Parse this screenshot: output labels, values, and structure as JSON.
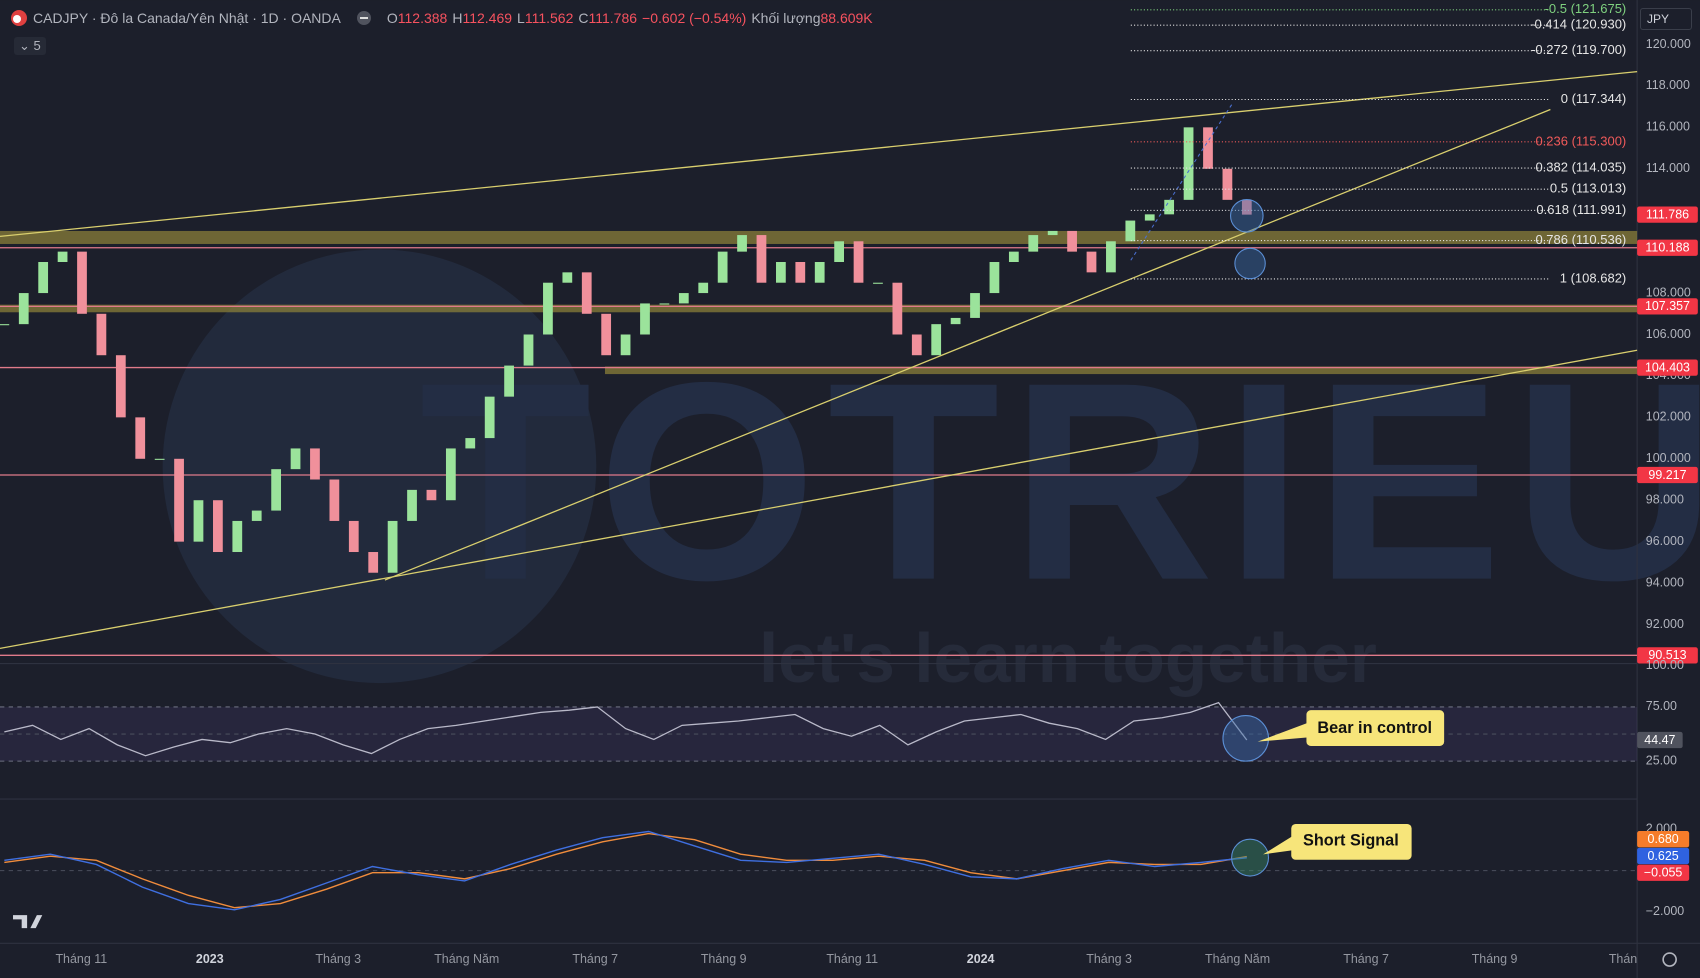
{
  "header": {
    "symbol": "CADJPY · Đô la Canada/Yên Nhật · 1D · OANDA",
    "ohlc": [
      {
        "key": "O",
        "value": 112.388
      },
      {
        "key": "H",
        "value": 112.469
      },
      {
        "key": "L",
        "value": 111.562
      },
      {
        "key": "C",
        "value": 111.786
      }
    ],
    "change": "−0.602 (−0.54%)",
    "volume_label": "Khối lượng",
    "volume": "88.609K",
    "indicators": 5,
    "currency": "JPY"
  },
  "price_axis": {
    "ticks": [
      {
        "value": 120,
        "label": "120.000"
      },
      {
        "value": 118,
        "label": "118.000"
      },
      {
        "value": 116,
        "label": "116.000"
      },
      {
        "value": 114,
        "label": "114.000"
      },
      {
        "value": 108,
        "label": "108.000"
      },
      {
        "value": 106,
        "label": "106.000"
      },
      {
        "value": 104,
        "label": "104.000"
      },
      {
        "value": 102,
        "label": "102.000"
      },
      {
        "value": 100,
        "label": "100.000"
      },
      {
        "value": 98,
        "label": "98.000"
      },
      {
        "value": 96,
        "label": "96.000"
      },
      {
        "value": 94,
        "label": "94.000"
      },
      {
        "value": 92,
        "label": "92.000"
      }
    ],
    "tags": [
      {
        "value": 111.786,
        "color": "#f23645"
      },
      {
        "value": 110.188,
        "color": "#f23645"
      },
      {
        "value": 107.357,
        "color": "#f23645"
      },
      {
        "value": 104.403,
        "color": "#f23645"
      },
      {
        "value": 99.217,
        "color": "#f23645"
      },
      {
        "value": 90.513,
        "color": "#f23645"
      }
    ]
  },
  "fib_levels": [
    {
      "value": 121.675,
      "label": "-0.5 (121.675)",
      "color": "#7fd17f"
    },
    {
      "value": 120.93,
      "label": "-0.414 (120.930)",
      "color": "#e6e6e6"
    },
    {
      "value": 119.7,
      "label": "-0.272 (119.700)",
      "color": "#e6e6e6"
    },
    {
      "value": 117.344,
      "label": "0 (117.344)",
      "color": "#e6e6e6"
    },
    {
      "value": 115.3,
      "label": "0.236 (115.300)",
      "color": "#f05a5a"
    },
    {
      "value": 114.035,
      "label": "0.382 (114.035)",
      "color": "#e6e6e6"
    },
    {
      "value": 113.013,
      "label": "0.5 (113.013)",
      "color": "#e6e6e6"
    },
    {
      "value": 111.991,
      "label": "0.618 (111.991)",
      "color": "#e6e6e6"
    },
    {
      "value": 110.536,
      "label": "0.786 (110.536)",
      "color": "#e6e6e6"
    },
    {
      "value": 108.682,
      "label": "1 (108.682)",
      "color": "#e6e6e6"
    }
  ],
  "candles": {
    "up_color": "#9be39b",
    "down_color": "#f0909b",
    "closes": [
      106.5,
      108,
      109.5,
      110,
      107,
      105,
      102,
      100,
      100,
      96,
      98,
      95.5,
      97,
      97.5,
      99.5,
      100.5,
      99,
      97,
      95.5,
      94.5,
      97,
      98.5,
      98,
      100.5,
      101,
      103,
      104.5,
      106,
      108.5,
      109,
      107,
      105,
      106,
      107.5,
      107.5,
      108,
      108.5,
      110,
      110.8,
      108.5,
      109.5,
      108.5,
      109.5,
      110.5,
      108.5,
      108.5,
      106,
      105,
      106.5,
      106.8,
      108,
      109.5,
      110,
      110.8,
      111,
      110,
      109,
      110.5,
      111.5,
      111.8,
      112.5,
      116,
      114,
      112.5,
      111.786
    ]
  },
  "rsi": {
    "color": "#b9b9c9",
    "values": [
      52,
      58,
      45,
      55,
      40,
      30,
      38,
      45,
      42,
      50,
      55,
      50,
      40,
      32,
      45,
      55,
      58,
      62,
      66,
      70,
      72,
      75,
      55,
      45,
      58,
      60,
      62,
      65,
      68,
      55,
      48,
      58,
      40,
      52,
      62,
      65,
      68,
      60,
      55,
      45,
      62,
      65,
      70,
      79,
      44.47
    ],
    "ticks": [
      {
        "value": 100,
        "label": "100.00"
      },
      {
        "value": 75,
        "label": "75.00"
      },
      {
        "value": 25,
        "label": "25.00"
      }
    ],
    "tag": 44.47
  },
  "macd": {
    "macd_color": "#3f6fe0",
    "signal_color": "#f08c3c",
    "macd": [
      0.5,
      0.8,
      0.3,
      -0.8,
      -1.6,
      -1.9,
      -1.4,
      -0.6,
      0.2,
      -0.2,
      -0.5,
      0.3,
      1.0,
      1.6,
      1.9,
      1.2,
      0.5,
      0.4,
      0.6,
      0.8,
      0.3,
      -0.3,
      -0.4,
      0.1,
      0.5,
      0.2,
      0.4,
      0.625
    ],
    "signal": [
      0.4,
      0.7,
      0.5,
      -0.4,
      -1.2,
      -1.8,
      -1.6,
      -0.9,
      -0.1,
      -0.1,
      -0.4,
      0.1,
      0.8,
      1.4,
      1.8,
      1.5,
      0.8,
      0.5,
      0.5,
      0.7,
      0.5,
      -0.1,
      -0.4,
      0.0,
      0.4,
      0.3,
      0.3,
      0.68
    ],
    "ticks": [
      {
        "value": 2,
        "label": "2.000"
      },
      {
        "value": -2,
        "label": "−2.000"
      }
    ],
    "tags": [
      {
        "value": 0.68,
        "label": "0.680",
        "color": "#f57c2a"
      },
      {
        "value": 0.625,
        "label": "0.625",
        "color": "#2f62e0"
      },
      {
        "value": -0.055,
        "label": "−0.055",
        "color": "#f23645"
      }
    ]
  },
  "time_axis": [
    "Tháng 11",
    "2023",
    "Tháng 3",
    "Tháng Năm",
    "Tháng 7",
    "Tháng 9",
    "Tháng 11",
    "2024",
    "Tháng 3",
    "Tháng Năm",
    "Tháng 7",
    "Tháng 9",
    "Thán"
  ],
  "annotations": [
    "Bear in control",
    "Short Signal"
  ],
  "watermark": {
    "brand": "TOTRIEU",
    "slogan": "let's learn together"
  }
}
